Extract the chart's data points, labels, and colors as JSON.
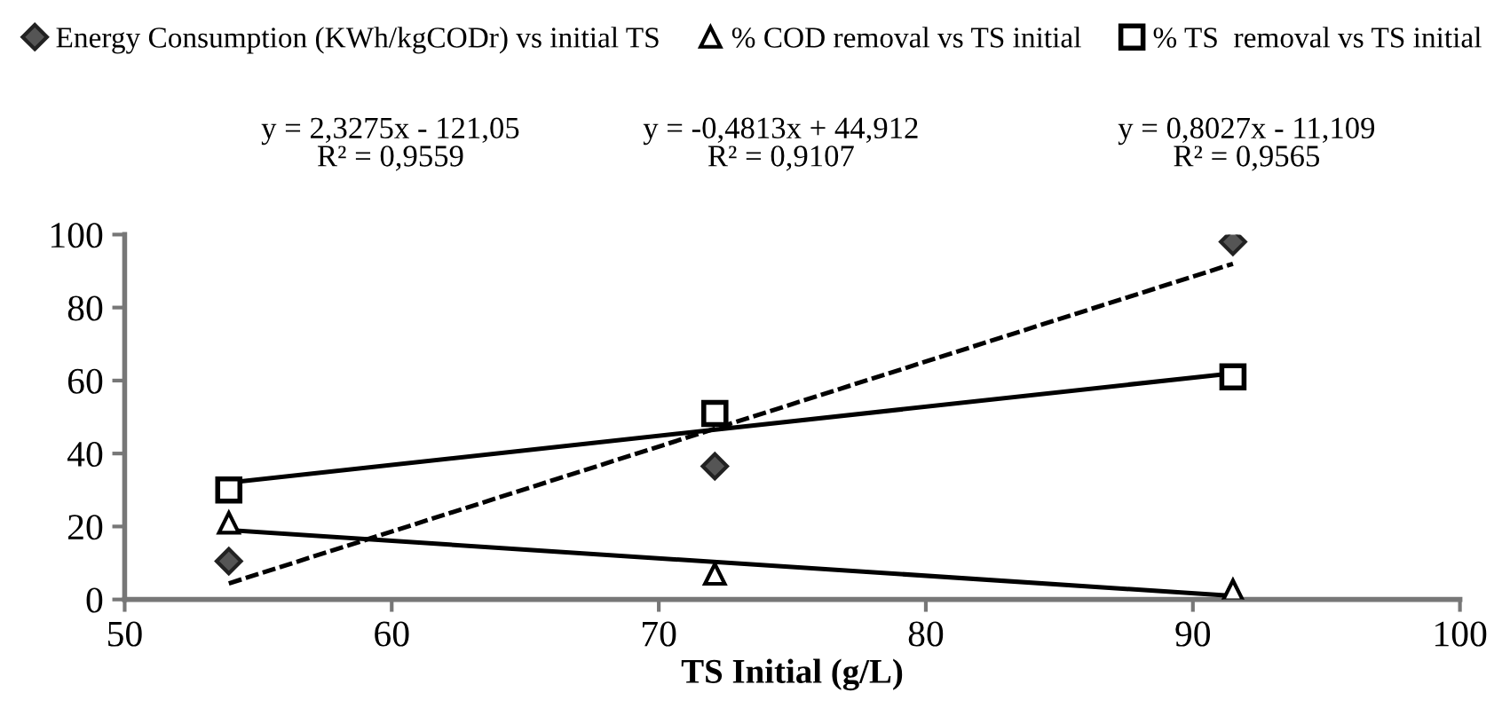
{
  "chart_data": {
    "type": "scatter",
    "xlabel": "TS Initial (g/L)",
    "xlim": [
      50,
      100
    ],
    "xticks": [
      50,
      60,
      70,
      80,
      90,
      100
    ],
    "ylim": [
      0,
      100
    ],
    "yticks": [
      0,
      20,
      40,
      60,
      80,
      100
    ],
    "grid": false,
    "legend": "top",
    "series": [
      {
        "name": "Energy Consumption (KWh/kgCODr) vs initial TS",
        "color": "#555555",
        "marker": "diamond",
        "x": [
          53.9,
          72.1,
          91.5
        ],
        "values": [
          10.5,
          36.5,
          98
        ]
      },
      {
        "name": "% COD removal vs TS initial",
        "color": "#000000",
        "marker": "triangle",
        "x": [
          53.9,
          72.1,
          91.5
        ],
        "values": [
          21,
          7,
          2.5
        ]
      },
      {
        "name": "% TS  removal vs TS initial",
        "color": "#000000",
        "marker": "square",
        "x": [
          53.9,
          72.1,
          91.5
        ],
        "values": [
          30,
          51,
          61
        ]
      },
      {
        "type": "line",
        "color": "#000000",
        "line_style": "dashed",
        "marker": "none",
        "x": [
          53.9,
          91.5
        ],
        "values": [
          4.4,
          92
        ]
      },
      {
        "type": "line",
        "color": "#000000",
        "line_style": "solid",
        "marker": "none",
        "x": [
          53.9,
          91.5
        ],
        "values": [
          19,
          1
        ]
      },
      {
        "type": "line",
        "color": "#000000",
        "line_style": "solid",
        "marker": "none",
        "x": [
          53.9,
          91.5
        ],
        "values": [
          32,
          62
        ]
      }
    ],
    "annotations": [
      "y = 2,3275x - 121,05\nR² = 0,9559",
      "y = -0,4813x + 44,912\nR² = 0,9107",
      "y = 0,8027x - 11,109\nR² = 0,9565"
    ]
  }
}
